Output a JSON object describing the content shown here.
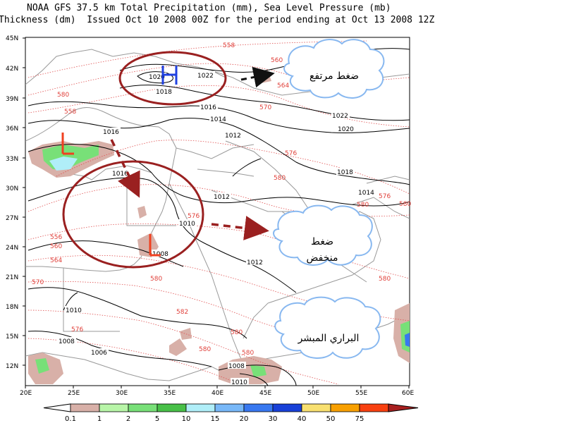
{
  "title_line1": "NOAA GFS 37.5 km Total Precipitation (mm), Sea Level Pressure (mb)",
  "title_line2": "Thickness (dm)  Issued Oct 10 2008 00Z for the period ending at Oct 13 2008 12Z",
  "lat_labels": [
    "45N",
    "42N",
    "39N",
    "36N",
    "33N",
    "30N",
    "27N",
    "24N",
    "21N",
    "18N",
    "15N",
    "12N"
  ],
  "lon_labels": [
    "20E",
    "25E",
    "30E",
    "35E",
    "40E",
    "45E",
    "50E",
    "55E",
    "60E"
  ],
  "isobars": [
    "1022",
    "1020",
    "1018",
    "1016",
    "1014",
    "1012",
    "1022",
    "1020",
    "1016",
    "1018",
    "1014",
    "1012",
    "1010",
    "1008",
    "1012",
    "1010",
    "1008",
    "1006",
    "1008",
    "1010",
    "1016"
  ],
  "thickness": [
    "558",
    "560",
    "564",
    "580",
    "558",
    "576",
    "570",
    "580",
    "576",
    "580",
    "576",
    "556",
    "560",
    "564",
    "570",
    "580",
    "582",
    "580",
    "576",
    "580",
    "580",
    "580",
    "580"
  ],
  "clouds": {
    "high": "ضغط مرتفع",
    "low_line1": "ضغط",
    "low_line2": "منخفض",
    "wilderness": "البراري المبشر"
  },
  "markers": {
    "high": "H",
    "low": "L"
  },
  "colorbar": {
    "labels": [
      "0.1",
      "1",
      "2",
      "5",
      "10",
      "15",
      "20",
      "30",
      "40",
      "50",
      "75"
    ],
    "colors": [
      "#d8b0a8",
      "#b8f5a8",
      "#78e078",
      "#48c048",
      "#b0eef8",
      "#78b8f8",
      "#3878f0",
      "#1840d8",
      "#f8e070",
      "#f8a000",
      "#f84010",
      "#a82020"
    ]
  }
}
